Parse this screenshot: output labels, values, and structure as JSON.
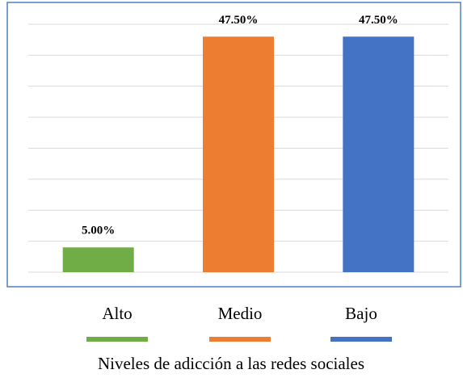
{
  "chart_data": {
    "type": "bar",
    "title": "Niveles de adicción a las redes sociales",
    "categories": [
      "Alto",
      "Medio",
      "Bajo"
    ],
    "values": [
      5,
      47.5,
      47.5
    ],
    "value_labels": [
      "5.00%",
      "47.50%",
      "47.50%"
    ],
    "colors": [
      "#70ad47",
      "#ed7d31",
      "#4472c4"
    ],
    "ylim": [
      0,
      50
    ],
    "yticks": [
      0,
      6.25,
      12.5,
      18.75,
      25,
      31.25,
      37.5,
      43.75,
      50
    ],
    "grid": true
  }
}
